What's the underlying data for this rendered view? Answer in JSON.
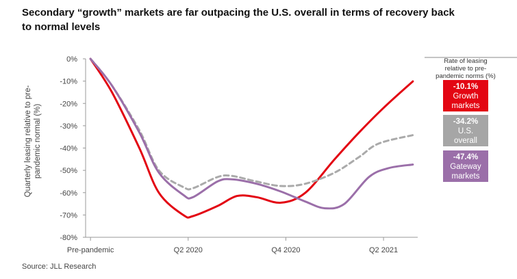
{
  "title": "Secondary “growth” markets are far outpacing the U.S. overall in terms of recovery back to normal levels",
  "source": "Source: JLL Research",
  "chart_data": {
    "type": "line",
    "ylabel": "Quarterly leasing relative to pre-pandemic normal (%)",
    "ylim": [
      -80,
      0
    ],
    "yticks": [
      0,
      -10,
      -20,
      -30,
      -40,
      -50,
      -60,
      -70,
      -80
    ],
    "ytick_labels": [
      "0%",
      "-10%",
      "-20%",
      "-30%",
      "-40%",
      "-50%",
      "-60%",
      "-70%",
      "-80%"
    ],
    "x": [
      0,
      0.5,
      1,
      1.5,
      2,
      2.5,
      3,
      3.5,
      4
    ],
    "xticks": [
      0,
      1,
      2,
      3
    ],
    "xtick_labels": [
      "Pre-pandemic",
      "Q2 2020",
      "Q4 2020",
      "Q2 2021"
    ],
    "xlim": [
      -0.05,
      3.35
    ],
    "legend_note": "Rate of leasing relative to pre-pandemic norms (%)",
    "series": [
      {
        "name": "Growth markets",
        "color": "#e30613",
        "dash": false,
        "x": [
          0,
          0.22,
          0.5,
          0.7,
          0.95,
          1.05,
          1.3,
          1.5,
          1.7,
          1.95,
          2.2,
          2.5,
          2.75,
          3.0,
          3.3
        ],
        "values": [
          0,
          -15,
          -40,
          -60,
          -70,
          -70.5,
          -66,
          -61.5,
          -62,
          -64.5,
          -60,
          -45,
          -33,
          -22,
          -10.1
        ]
      },
      {
        "name": "U.S. overall",
        "color": "#aaaaaa",
        "dash": true,
        "x": [
          0,
          0.22,
          0.5,
          0.7,
          0.95,
          1.05,
          1.3,
          1.45,
          1.7,
          1.95,
          2.2,
          2.5,
          2.75,
          2.95,
          3.3
        ],
        "values": [
          0,
          -12,
          -32,
          -50,
          -57.5,
          -58,
          -53,
          -52.5,
          -55,
          -57,
          -56,
          -51,
          -44,
          -38,
          -34.2
        ]
      },
      {
        "name": "Gateway markets",
        "color": "#9b6fa9",
        "dash": false,
        "x": [
          0,
          0.22,
          0.5,
          0.7,
          0.95,
          1.05,
          1.3,
          1.45,
          1.7,
          1.95,
          2.2,
          2.4,
          2.6,
          2.85,
          3.05,
          3.3
        ],
        "values": [
          0,
          -12,
          -33,
          -51,
          -61,
          -62,
          -55,
          -54,
          -56,
          -59.5,
          -64,
          -67,
          -65,
          -53,
          -49,
          -47.4
        ]
      }
    ],
    "labels": [
      {
        "value": "-10.1%",
        "name1": "Growth",
        "name2": "markets",
        "color": "#e30613"
      },
      {
        "value": "-34.2%",
        "name1": "U.S.",
        "name2": "overall",
        "color": "#a6a6a6"
      },
      {
        "value": "-47.4%",
        "name1": "Gateway",
        "name2": "markets",
        "color": "#9b6fa9"
      }
    ]
  }
}
